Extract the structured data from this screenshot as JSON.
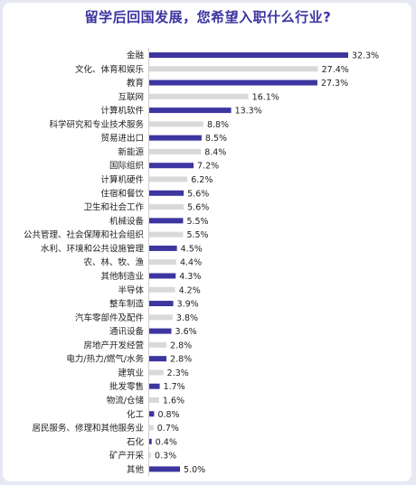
{
  "colors": {
    "highlight": "#3d35a0",
    "muted": "#d9d9d9",
    "title": "#3d35a0"
  },
  "chart_data": {
    "type": "bar",
    "orientation": "horizontal",
    "title": "留学后回国发展，您希望入职什么行业?",
    "value_suffix": "%",
    "grid": false,
    "legend": "none",
    "xlim": [
      0,
      32.3
    ],
    "categories": [
      "金融",
      "文化、体育和娱乐",
      "教育",
      "互联网",
      "计算机软件",
      "科学研究和专业技术服务",
      "贸易进出口",
      "新能源",
      "国际组织",
      "计算机硬件",
      "住宿和餐饮",
      "卫生和社会工作",
      "机械设备",
      "公共管理、社会保障和社会组织",
      "水利、环境和公共设施管理",
      "农、林、牧、渔",
      "其他制造业",
      "半导体",
      "整车制造",
      "汽车零部件及配件",
      "通讯设备",
      "房地产开发经营",
      "电力/热力/燃气/水务",
      "建筑业",
      "批发零售",
      "物流/仓储",
      "化工",
      "居民服务、修理和其他服务业",
      "石化",
      "矿产开采",
      "其他"
    ],
    "values": [
      32.3,
      27.4,
      27.3,
      16.1,
      13.3,
      8.8,
      8.5,
      8.4,
      7.2,
      6.2,
      5.6,
      5.6,
      5.5,
      5.5,
      4.5,
      4.4,
      4.3,
      4.2,
      3.9,
      3.8,
      3.6,
      2.8,
      2.8,
      2.3,
      1.7,
      1.6,
      0.8,
      0.7,
      0.4,
      0.3,
      5.0
    ],
    "labels": [
      "32.3%",
      "27.4%",
      "27.3%",
      "16.1%",
      "13.3%",
      "8.8%",
      "8.5%",
      "8.4%",
      "7.2%",
      "6.2%",
      "5.6%",
      "5.6%",
      "5.5%",
      "5.5%",
      "4.5%",
      "4.4%",
      "4.3%",
      "4.2%",
      "3.9%",
      "3.8%",
      "3.6%",
      "2.8%",
      "2.8%",
      "2.3%",
      "1.7%",
      "1.6%",
      "0.8%",
      "0.7%",
      "0.4%",
      "0.3%",
      "5.0%"
    ],
    "highlighted": [
      true,
      false,
      true,
      false,
      true,
      false,
      true,
      false,
      true,
      false,
      true,
      false,
      true,
      false,
      true,
      false,
      true,
      false,
      true,
      false,
      true,
      false,
      true,
      false,
      true,
      false,
      true,
      false,
      true,
      false,
      true
    ]
  }
}
